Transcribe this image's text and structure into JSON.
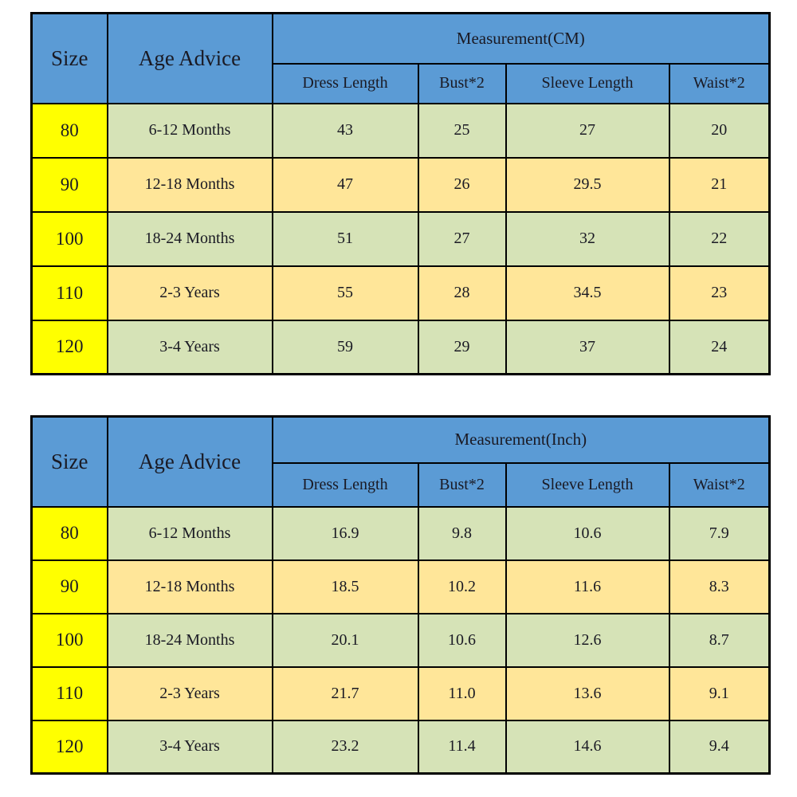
{
  "colors": {
    "page_background": "#FFFFFF",
    "header_blue": "#5B9BD5",
    "size_yellow": "#FFFF00",
    "row_green": "#D6E3B7",
    "row_tan": "#FFE699",
    "border": "#000000",
    "text": "#1A1A24"
  },
  "tables": [
    {
      "name": "size-chart-cm",
      "header": {
        "size": "Size",
        "age": "Age Advice",
        "measurement": "Measurement(CM)",
        "columns": [
          "Dress Length",
          "Bust*2",
          "Sleeve Length",
          "Waist*2"
        ]
      },
      "rows": [
        {
          "size": "80",
          "age": "6-12 Months",
          "values": [
            "43",
            "25",
            "27",
            "20"
          ]
        },
        {
          "size": "90",
          "age": "12-18 Months",
          "values": [
            "47",
            "26",
            "29.5",
            "21"
          ]
        },
        {
          "size": "100",
          "age": "18-24 Months",
          "values": [
            "51",
            "27",
            "32",
            "22"
          ]
        },
        {
          "size": "110",
          "age": "2-3 Years",
          "values": [
            "55",
            "28",
            "34.5",
            "23"
          ]
        },
        {
          "size": "120",
          "age": "3-4 Years",
          "values": [
            "59",
            "29",
            "37",
            "24"
          ]
        }
      ]
    },
    {
      "name": "size-chart-inch",
      "header": {
        "size": "Size",
        "age": "Age Advice",
        "measurement": "Measurement(Inch)",
        "columns": [
          "Dress Length",
          "Bust*2",
          "Sleeve Length",
          "Waist*2"
        ]
      },
      "rows": [
        {
          "size": "80",
          "age": "6-12 Months",
          "values": [
            "16.9",
            "9.8",
            "10.6",
            "7.9"
          ]
        },
        {
          "size": "90",
          "age": "12-18 Months",
          "values": [
            "18.5",
            "10.2",
            "11.6",
            "8.3"
          ]
        },
        {
          "size": "100",
          "age": "18-24 Months",
          "values": [
            "20.1",
            "10.6",
            "12.6",
            "8.7"
          ]
        },
        {
          "size": "110",
          "age": "2-3 Years",
          "values": [
            "21.7",
            "11.0",
            "13.6",
            "9.1"
          ]
        },
        {
          "size": "120",
          "age": "3-4 Years",
          "values": [
            "23.2",
            "11.4",
            "14.6",
            "9.4"
          ]
        }
      ]
    }
  ]
}
